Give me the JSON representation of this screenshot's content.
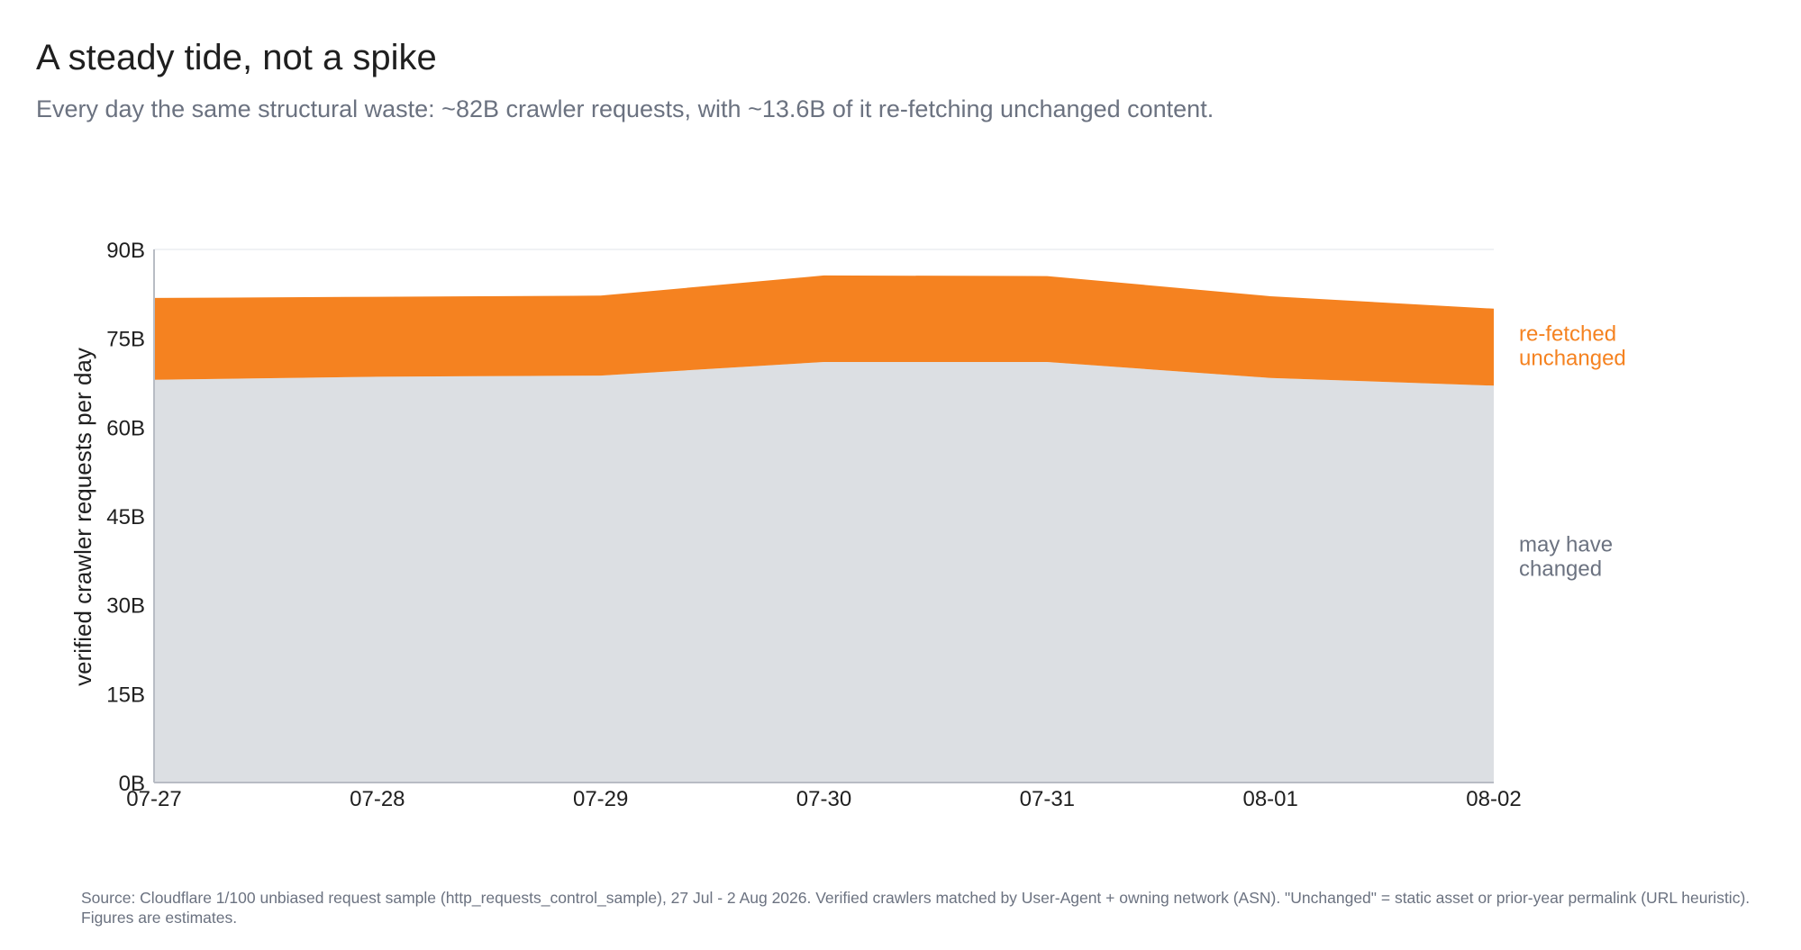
{
  "title": "A steady tide, not a spike",
  "subtitle": "Every day the same structural waste: ~82B crawler requests, with ~13.6B of it re-fetching unchanged content.",
  "source": "Source: Cloudflare 1/100 unbiased request sample (http_requests_control_sample), 27 Jul - 2 Aug 2026. Verified crawlers matched by User-Agent + owning network (ASN). \"Unchanged\" = static asset or prior-year permalink (URL heuristic). Figures are estimates.",
  "colors": {
    "unchanged": "#f58220",
    "changed": "#dcdfe3",
    "axis": "#b8bcc4",
    "grid": "#eceef1",
    "changed_label": "#6b7280"
  },
  "chart_data": {
    "type": "area",
    "stacked": true,
    "x": [
      "07-27",
      "07-28",
      "07-29",
      "07-30",
      "07-31",
      "08-01",
      "08-02"
    ],
    "ylabel": "verified crawler requests per day",
    "ylim": [
      0,
      90
    ],
    "yticks": [
      0,
      15,
      30,
      45,
      60,
      75,
      90
    ],
    "ytick_labels": [
      "0B",
      "15B",
      "30B",
      "45B",
      "60B",
      "75B",
      "90B"
    ],
    "series": [
      {
        "name": "may have changed",
        "values": [
          68.0,
          68.5,
          68.7,
          71.0,
          71.0,
          68.3,
          67.0
        ],
        "color": "#dcdfe3",
        "label_color": "#6b7280"
      },
      {
        "name": "re-fetched unchanged",
        "values": [
          13.8,
          13.5,
          13.5,
          14.6,
          14.5,
          13.8,
          13.0
        ],
        "color": "#f58220",
        "label_color": "#f58220"
      }
    ],
    "grid": false,
    "legend": "inline-right"
  }
}
